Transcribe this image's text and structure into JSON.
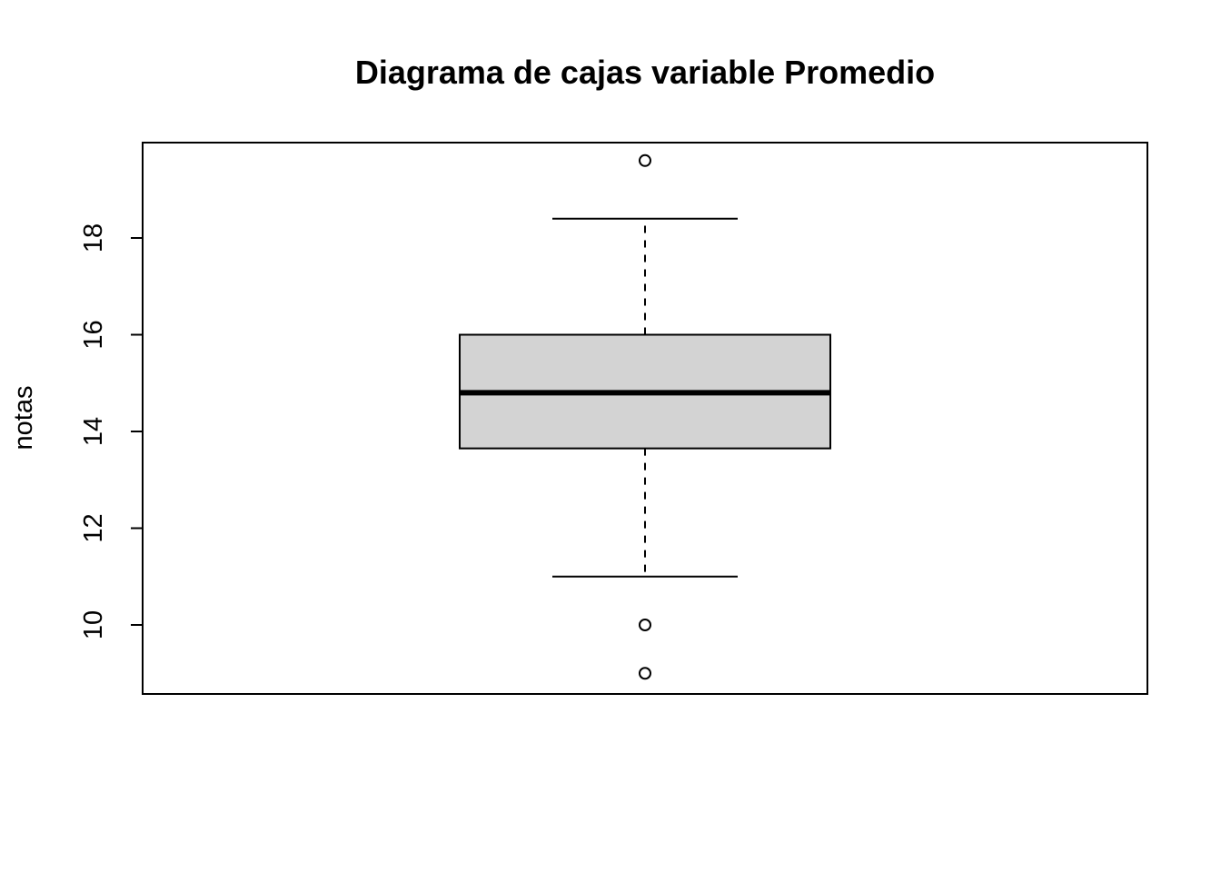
{
  "chart_data": {
    "type": "boxplot",
    "title": "Diagrama de cajas variable Promedio",
    "xlabel": "",
    "ylabel": "notas",
    "ylim": [
      8.6,
      20.0
    ],
    "yticks": [
      10,
      12,
      14,
      16,
      18
    ],
    "ytick_labels": [
      "10",
      "12",
      "14",
      "16",
      "18"
    ],
    "box": {
      "lower_whisker": 11.0,
      "q1": 13.65,
      "median": 14.8,
      "q3": 16.0,
      "upper_whisker": 18.4
    },
    "outliers": [
      19.6,
      10.0,
      9.0
    ],
    "grid": false,
    "legend": "none",
    "colors": {
      "box_fill": "#d3d3d3",
      "stroke": "#000000",
      "background": "#ffffff"
    }
  }
}
